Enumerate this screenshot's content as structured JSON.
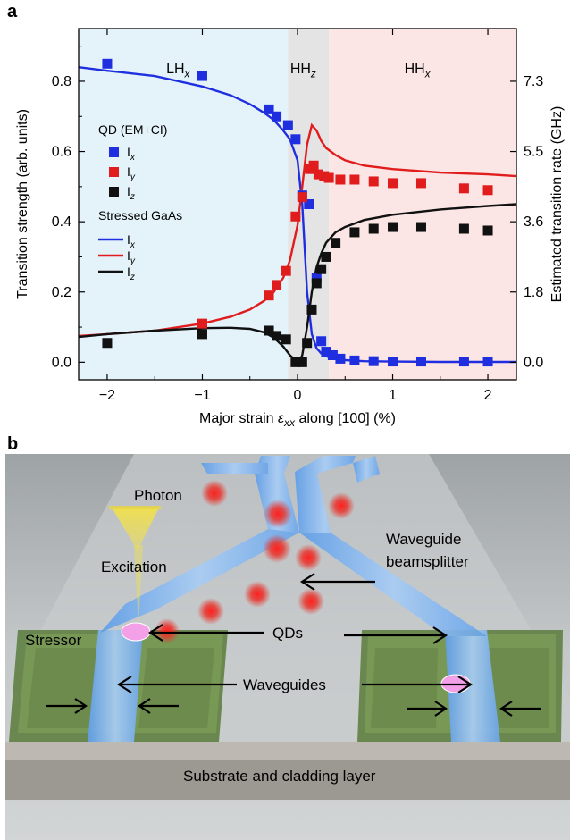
{
  "panel_a": {
    "letter": "a",
    "chart_data": {
      "type": "scatter",
      "xlabel": "Major strain εxx along [100] (%)",
      "ylabel": "Transition strength (arb. units)",
      "y2label": "Estimated transition rate (GHz)",
      "xlim": [
        -2.3,
        2.3
      ],
      "ylim": [
        -0.05,
        0.95
      ],
      "xticks": [
        -2,
        -1,
        0,
        1,
        2
      ],
      "yticks": [
        0.0,
        0.2,
        0.4,
        0.6,
        0.8
      ],
      "y2ticks": [
        {
          "label": "0.0",
          "y": 0.0
        },
        {
          "label": "1.8",
          "y": 0.2
        },
        {
          "label": "3.6",
          "y": 0.4
        },
        {
          "label": "5.5",
          "y": 0.6
        },
        {
          "label": "7.3",
          "y": 0.8
        }
      ],
      "regions": [
        {
          "name": "LHx",
          "main": "LH",
          "sub": "x",
          "x0": -2.3,
          "x1": -0.1,
          "color": "#e4f3fa"
        },
        {
          "name": "HHz",
          "main": "HH",
          "sub": "z",
          "x0": -0.1,
          "x1": 0.33,
          "color": "#e4e4e4"
        },
        {
          "name": "HHx",
          "main": "HH",
          "sub": "x",
          "x0": 0.33,
          "x1": 2.3,
          "color": "#fbe5e5"
        }
      ],
      "legend_qd_title": "QD (EM+CI)",
      "legend_gaas_title": "Stressed GaAs",
      "series_points": [
        {
          "name": "Ix",
          "label_main": "I",
          "label_sub": "x",
          "color": "#1f2fe0",
          "x": [
            -2.0,
            -1.0,
            -0.3,
            -0.22,
            -0.1,
            -0.02,
            0.05,
            0.12,
            0.2,
            0.25,
            0.3,
            0.37,
            0.45,
            0.6,
            0.8,
            1.0,
            1.3,
            1.75,
            2.0
          ],
          "y": [
            0.85,
            0.815,
            0.72,
            0.7,
            0.675,
            0.635,
            0.475,
            0.45,
            0.24,
            0.06,
            0.03,
            0.02,
            0.01,
            0.005,
            0.003,
            0.002,
            0.002,
            0.002,
            0.002
          ]
        },
        {
          "name": "Iy",
          "label_main": "I",
          "label_sub": "y",
          "color": "#e01c1c",
          "x": [
            -1.0,
            -0.3,
            -0.22,
            -0.12,
            -0.02,
            0.05,
            0.13,
            0.17,
            0.22,
            0.28,
            0.33,
            0.45,
            0.6,
            0.8,
            1.0,
            1.3,
            1.75,
            2.0
          ],
          "y": [
            0.11,
            0.19,
            0.22,
            0.26,
            0.415,
            0.47,
            0.55,
            0.56,
            0.535,
            0.53,
            0.525,
            0.52,
            0.52,
            0.515,
            0.51,
            0.51,
            0.495,
            0.49
          ]
        },
        {
          "name": "Iz",
          "label_main": "I",
          "label_sub": "z",
          "color": "#111111",
          "x": [
            -2.0,
            -1.0,
            -0.3,
            -0.22,
            -0.12,
            -0.02,
            0.05,
            0.1,
            0.15,
            0.2,
            0.25,
            0.3,
            0.4,
            0.6,
            0.8,
            1.0,
            1.3,
            1.75,
            2.0
          ],
          "y": [
            0.055,
            0.08,
            0.09,
            0.075,
            0.065,
            0.0,
            0.0,
            0.055,
            0.15,
            0.225,
            0.265,
            0.3,
            0.34,
            0.37,
            0.38,
            0.385,
            0.385,
            0.38,
            0.375
          ]
        }
      ],
      "series_curves": [
        {
          "name": "Ix",
          "label_main": "I",
          "label_sub": "x",
          "color": "#1f2fe0",
          "x": [
            -2.3,
            -2.0,
            -1.5,
            -1.0,
            -0.7,
            -0.5,
            -0.35,
            -0.25,
            -0.15,
            -0.08,
            0.0,
            0.05,
            0.1,
            0.15,
            0.2,
            0.25,
            0.3,
            0.4,
            0.5,
            0.7,
            1.0,
            1.5,
            2.0,
            2.3
          ],
          "y": [
            0.84,
            0.83,
            0.815,
            0.785,
            0.76,
            0.735,
            0.71,
            0.69,
            0.66,
            0.635,
            0.575,
            0.45,
            0.2,
            0.08,
            0.04,
            0.025,
            0.017,
            0.01,
            0.006,
            0.003,
            0.002,
            0.001,
            0.001,
            0.001
          ]
        },
        {
          "name": "Iy",
          "label_main": "I",
          "label_sub": "y",
          "color": "#e01c1c",
          "x": [
            -2.3,
            -2.0,
            -1.5,
            -1.0,
            -0.7,
            -0.5,
            -0.35,
            -0.25,
            -0.15,
            -0.08,
            0.0,
            0.05,
            0.1,
            0.15,
            0.2,
            0.25,
            0.3,
            0.4,
            0.5,
            0.7,
            1.0,
            1.5,
            2.0,
            2.3
          ],
          "y": [
            0.075,
            0.08,
            0.09,
            0.11,
            0.13,
            0.15,
            0.175,
            0.2,
            0.24,
            0.29,
            0.39,
            0.5,
            0.62,
            0.675,
            0.66,
            0.63,
            0.61,
            0.59,
            0.575,
            0.56,
            0.55,
            0.54,
            0.535,
            0.53
          ]
        },
        {
          "name": "Iz",
          "label_main": "I",
          "label_sub": "z",
          "color": "#111111",
          "x": [
            -2.3,
            -2.0,
            -1.5,
            -1.0,
            -0.7,
            -0.5,
            -0.35,
            -0.25,
            -0.15,
            -0.08,
            -0.02,
            0.02,
            0.05,
            0.1,
            0.15,
            0.2,
            0.25,
            0.3,
            0.4,
            0.5,
            0.7,
            1.0,
            1.5,
            2.0,
            2.3
          ],
          "y": [
            0.072,
            0.08,
            0.09,
            0.097,
            0.098,
            0.095,
            0.085,
            0.07,
            0.045,
            0.02,
            0.005,
            0.003,
            0.02,
            0.1,
            0.2,
            0.27,
            0.31,
            0.34,
            0.37,
            0.385,
            0.405,
            0.42,
            0.435,
            0.445,
            0.45
          ]
        }
      ]
    }
  },
  "panel_b": {
    "letter": "b",
    "labels": {
      "photon": "Photon",
      "excitation": "Excitation",
      "waveguide_beamsplitter_1": "Waveguide",
      "waveguide_beamsplitter_2": "beamsplitter",
      "stressor": "Stressor",
      "qds": "QDs",
      "waveguides": "Waveguides",
      "substrate": "Substrate and cladding layer"
    },
    "colors": {
      "background": "#b9bdbe",
      "waveguide": "#7fb3ee",
      "stressor": "#6f8f4e",
      "photon": "#e8342c",
      "qd": "#f4a0e8",
      "excitation": "#f3e25a"
    }
  }
}
